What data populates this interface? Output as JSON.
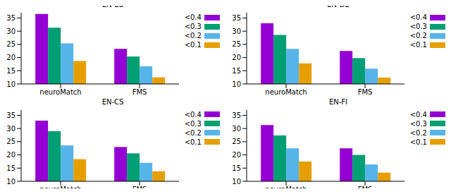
{
  "chart_data": [
    {
      "type": "bar",
      "title": "EN-ES",
      "categories": [
        "neuroMatch",
        "FMS"
      ],
      "series": [
        {
          "name": "<0.4",
          "color": "#9400d3",
          "values": [
            36.5,
            23.3
          ]
        },
        {
          "name": "<0.3",
          "color": "#009e73",
          "values": [
            31.3,
            20.4
          ]
        },
        {
          "name": "<0.2",
          "color": "#56b4e9",
          "values": [
            25.4,
            16.7
          ]
        },
        {
          "name": "<0.1",
          "color": "#e69f00",
          "values": [
            18.7,
            12.5
          ]
        }
      ],
      "ylim": [
        10,
        37
      ],
      "yticks": [
        10,
        15,
        20,
        25,
        30,
        35
      ],
      "grid": false,
      "legend": "right"
    },
    {
      "type": "bar",
      "title": "EN-DE",
      "categories": [
        "neuroMatch",
        "FMS"
      ],
      "series": [
        {
          "name": "<0.4",
          "color": "#9400d3",
          "values": [
            33.0,
            22.5
          ]
        },
        {
          "name": "<0.3",
          "color": "#009e73",
          "values": [
            28.6,
            19.8
          ]
        },
        {
          "name": "<0.2",
          "color": "#56b4e9",
          "values": [
            23.3,
            15.8
          ]
        },
        {
          "name": "<0.1",
          "color": "#e69f00",
          "values": [
            17.8,
            12.4
          ]
        }
      ],
      "ylim": [
        10,
        37
      ],
      "yticks": [
        10,
        15,
        20,
        25,
        30,
        35
      ],
      "grid": false,
      "legend": "right"
    },
    {
      "type": "bar",
      "title": "EN-CS",
      "categories": [
        "neuroMatch",
        "FMS"
      ],
      "series": [
        {
          "name": "<0.4",
          "color": "#9400d3",
          "values": [
            33.0,
            23.0
          ]
        },
        {
          "name": "<0.3",
          "color": "#009e73",
          "values": [
            29.0,
            20.6
          ]
        },
        {
          "name": "<0.2",
          "color": "#56b4e9",
          "values": [
            23.6,
            17.0
          ]
        },
        {
          "name": "<0.1",
          "color": "#e69f00",
          "values": [
            18.4,
            13.8
          ]
        }
      ],
      "ylim": [
        10,
        37
      ],
      "yticks": [
        10,
        15,
        20,
        25,
        30,
        35
      ],
      "grid": false,
      "legend": "right"
    },
    {
      "type": "bar",
      "title": "EN-FI",
      "categories": [
        "neuroMatch",
        "FMS"
      ],
      "series": [
        {
          "name": "<0.4",
          "color": "#9400d3",
          "values": [
            31.3,
            22.5
          ]
        },
        {
          "name": "<0.3",
          "color": "#009e73",
          "values": [
            27.4,
            20.0
          ]
        },
        {
          "name": "<0.2",
          "color": "#56b4e9",
          "values": [
            22.5,
            16.4
          ]
        },
        {
          "name": "<0.1",
          "color": "#e69f00",
          "values": [
            17.5,
            13.3
          ]
        }
      ],
      "ylim": [
        10,
        37
      ],
      "yticks": [
        10,
        15,
        20,
        25,
        30,
        35
      ],
      "grid": false,
      "legend": "right"
    }
  ]
}
